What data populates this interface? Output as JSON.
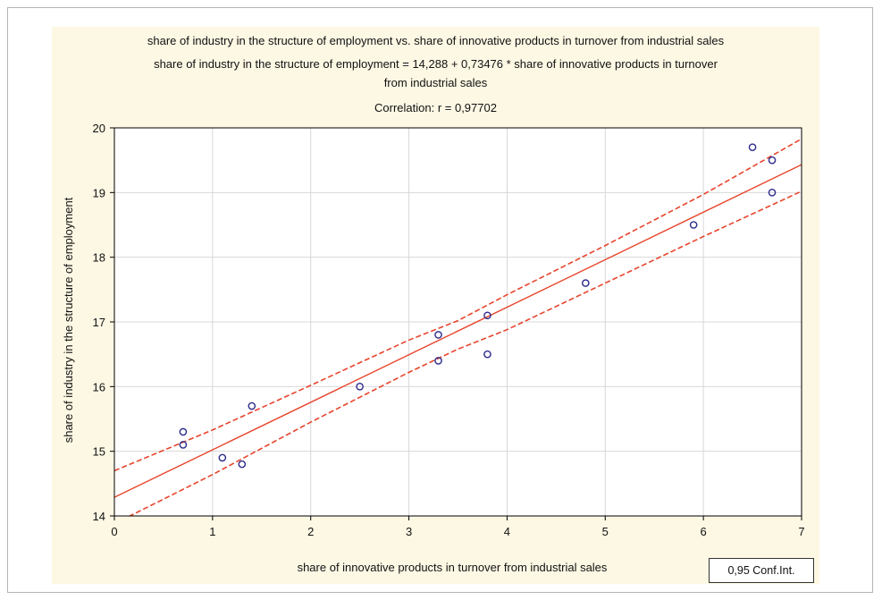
{
  "chart_data": {
    "type": "scatter",
    "title": "share of industry in the structure of employment vs. share of innovative products in turnover from industrial sales",
    "subtitle_line1": "share of industry in the structure of employment = 14,288 + 0,73476 * share of innovative products in turnover",
    "subtitle_line2": "from industrial sales",
    "correlation_text": "Correlation: r = 0,97702",
    "xlabel": "share of innovative products in turnover from industrial sales",
    "ylabel": "share of industry in the structure of employment",
    "xlim": [
      0,
      7
    ],
    "ylim": [
      14,
      20
    ],
    "x_ticks": [
      "0",
      "1",
      "2",
      "3",
      "4",
      "5",
      "6",
      "7"
    ],
    "y_ticks": [
      "14",
      "15",
      "16",
      "17",
      "18",
      "19",
      "20"
    ],
    "grid": true,
    "legend": "0,95 Conf.Int.",
    "regression": {
      "intercept": 14.288,
      "slope": 0.73476
    },
    "confidence_band": {
      "x": [
        0,
        1,
        2,
        3,
        3.5,
        4,
        5,
        6,
        7
      ],
      "upper": [
        14.7,
        15.33,
        16.02,
        16.72,
        17.02,
        17.42,
        18.18,
        18.97,
        19.83
      ],
      "lower": [
        13.88,
        14.64,
        15.45,
        16.22,
        16.58,
        16.88,
        17.6,
        18.32,
        19.02
      ]
    },
    "points": [
      {
        "x": 0.7,
        "y": 15.3
      },
      {
        "x": 0.7,
        "y": 15.1
      },
      {
        "x": 1.1,
        "y": 14.9
      },
      {
        "x": 1.3,
        "y": 14.8
      },
      {
        "x": 1.4,
        "y": 15.7
      },
      {
        "x": 2.5,
        "y": 16.0
      },
      {
        "x": 3.3,
        "y": 16.8
      },
      {
        "x": 3.3,
        "y": 16.4
      },
      {
        "x": 3.8,
        "y": 17.1
      },
      {
        "x": 3.8,
        "y": 16.5
      },
      {
        "x": 4.8,
        "y": 17.6
      },
      {
        "x": 5.9,
        "y": 18.5
      },
      {
        "x": 6.5,
        "y": 19.7
      },
      {
        "x": 6.7,
        "y": 19.5
      },
      {
        "x": 6.7,
        "y": 19.0
      }
    ],
    "colors": {
      "panel_background": "#fdf8e4",
      "line": "#e8442c",
      "marker": "#2b2b8c",
      "grid": "#d8d8d8"
    }
  }
}
